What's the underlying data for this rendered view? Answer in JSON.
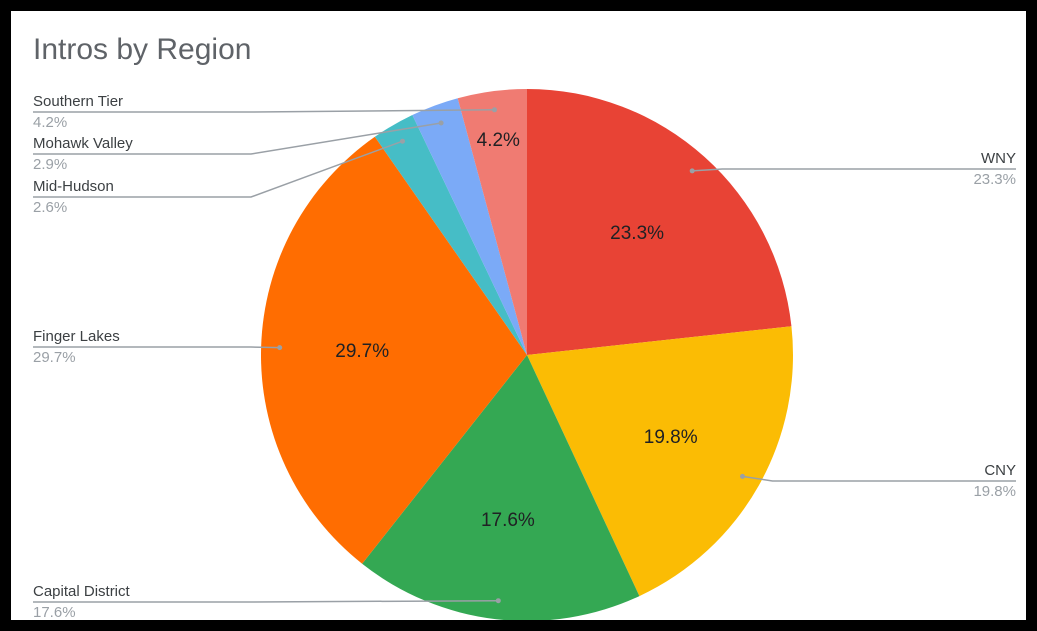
{
  "chart_data": {
    "type": "pie",
    "title": "Intros by Region",
    "slices": [
      {
        "label": "WNY",
        "value": 23.3,
        "display": "23.3%",
        "color": "#e84335"
      },
      {
        "label": "CNY",
        "value": 19.8,
        "display": "19.8%",
        "color": "#fbbc04"
      },
      {
        "label": "Capital District",
        "value": 17.6,
        "display": "17.6%",
        "color": "#34a853"
      },
      {
        "label": "Finger Lakes",
        "value": 29.7,
        "display": "29.7%",
        "color": "#ff6d01"
      },
      {
        "label": "Mid-Hudson",
        "value": 2.6,
        "display": "2.6%",
        "color": "#46bdc6"
      },
      {
        "label": "Mohawk Valley",
        "value": 2.9,
        "display": "2.9%",
        "color": "#7baaf7"
      },
      {
        "label": "Southern Tier",
        "value": 4.2,
        "display": "4.2%",
        "color": "#f07b72"
      }
    ],
    "inside_labels_shown": [
      "WNY",
      "CNY",
      "Capital District",
      "Finger Lakes",
      "Southern Tier"
    ]
  }
}
